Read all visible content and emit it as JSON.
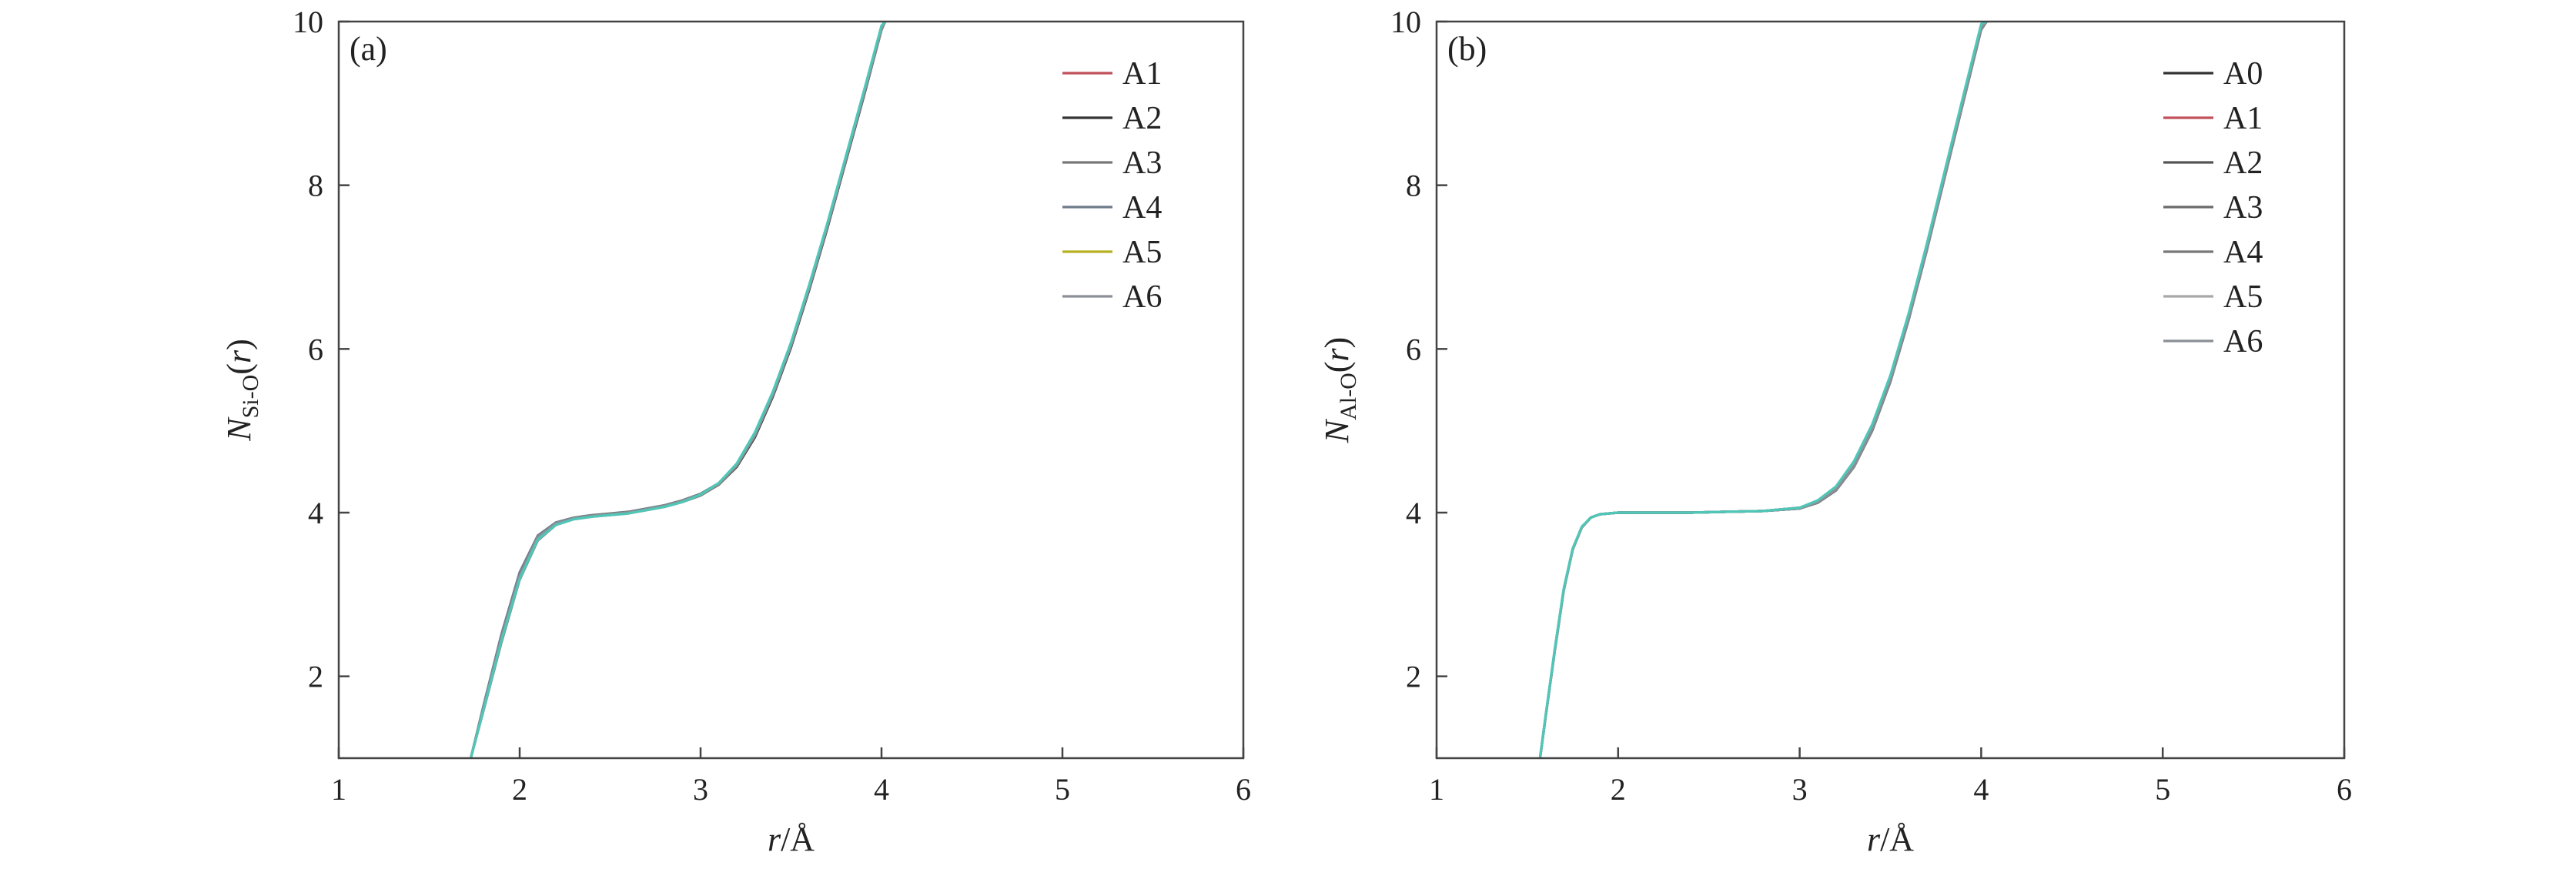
{
  "chart_data": [
    {
      "type": "line",
      "panel_label": "(a)",
      "xlabel": "r/Å",
      "ylabel": "N_Si-O(r)",
      "ylabel_parts": {
        "main": "N",
        "sub": "Si-O",
        "suffix": "(r)"
      },
      "xlabel_parts": {
        "italic": "r",
        "rest": "/Å"
      },
      "xlim": [
        1,
        6
      ],
      "ylim": [
        1,
        10
      ],
      "xticks": [
        "1",
        "2",
        "3",
        "4",
        "5",
        "6"
      ],
      "yticks": [
        "2",
        "4",
        "6",
        "8",
        "10"
      ],
      "grid": false,
      "legend_position": "top-right",
      "x": [
        1.73,
        1.8,
        1.9,
        2.0,
        2.1,
        2.2,
        2.3,
        2.4,
        2.5,
        2.6,
        2.7,
        2.8,
        2.9,
        3.0,
        3.1,
        3.2,
        3.3,
        3.4,
        3.5,
        3.6,
        3.7,
        3.8,
        3.9,
        4.0,
        4.02
      ],
      "series": [
        {
          "name": "A1",
          "color": "#c0505a",
          "values": [
            1.0,
            1.6,
            2.45,
            3.2,
            3.68,
            3.86,
            3.93,
            3.96,
            3.98,
            4.0,
            4.04,
            4.08,
            4.14,
            4.22,
            4.35,
            4.58,
            4.95,
            5.45,
            6.05,
            6.75,
            7.5,
            8.3,
            9.1,
            9.92,
            10.0
          ]
        },
        {
          "name": "A2",
          "color": "#333333",
          "values": [
            1.0,
            1.62,
            2.5,
            3.25,
            3.7,
            3.87,
            3.93,
            3.96,
            3.98,
            4.0,
            4.04,
            4.08,
            4.14,
            4.22,
            4.34,
            4.56,
            4.92,
            5.42,
            6.02,
            6.72,
            7.47,
            8.27,
            9.07,
            9.9,
            10.0
          ]
        },
        {
          "name": "A3",
          "color": "#777777",
          "values": [
            1.0,
            1.58,
            2.42,
            3.18,
            3.66,
            3.85,
            3.92,
            3.95,
            3.97,
            3.99,
            4.03,
            4.07,
            4.13,
            4.21,
            4.34,
            4.57,
            4.94,
            5.44,
            6.04,
            6.74,
            7.49,
            8.29,
            9.09,
            9.91,
            10.0
          ]
        },
        {
          "name": "A4",
          "color": "#6e7b8a",
          "values": [
            1.0,
            1.64,
            2.52,
            3.27,
            3.72,
            3.88,
            3.94,
            3.97,
            3.99,
            4.01,
            4.05,
            4.09,
            4.15,
            4.23,
            4.36,
            4.59,
            4.96,
            5.46,
            6.06,
            6.76,
            7.51,
            8.31,
            9.11,
            9.93,
            10.0
          ]
        },
        {
          "name": "A5",
          "color": "#b8b020",
          "values": [
            1.0,
            1.6,
            2.46,
            3.21,
            3.69,
            3.86,
            3.93,
            3.96,
            3.98,
            4.0,
            4.04,
            4.08,
            4.14,
            4.22,
            4.35,
            4.58,
            4.95,
            5.45,
            6.05,
            6.75,
            7.5,
            8.3,
            9.1,
            9.92,
            10.0
          ]
        },
        {
          "name": "A6",
          "color": "#8a8f96",
          "values": [
            1.0,
            1.61,
            2.48,
            3.23,
            3.7,
            3.87,
            3.93,
            3.96,
            3.98,
            4.0,
            4.04,
            4.08,
            4.14,
            4.22,
            4.35,
            4.58,
            4.94,
            5.44,
            6.04,
            6.74,
            7.49,
            8.29,
            9.09,
            9.91,
            10.0
          ]
        },
        {
          "name": "",
          "color": "#4fc7b8",
          "values": [
            1.0,
            1.59,
            2.44,
            3.19,
            3.67,
            3.85,
            3.92,
            3.95,
            3.97,
            3.99,
            4.03,
            4.07,
            4.13,
            4.22,
            4.36,
            4.6,
            4.98,
            5.48,
            6.08,
            6.78,
            7.53,
            8.33,
            9.13,
            9.95,
            10.0
          ]
        }
      ]
    },
    {
      "type": "line",
      "panel_label": "(b)",
      "xlabel": "r/Å",
      "ylabel": "N_Al-O(r)",
      "ylabel_parts": {
        "main": "N",
        "sub": "Al-O",
        "suffix": "(r)"
      },
      "xlabel_parts": {
        "italic": "r",
        "rest": "/Å"
      },
      "xlim": [
        1,
        6
      ],
      "ylim": [
        1,
        10
      ],
      "xticks": [
        "1",
        "2",
        "3",
        "4",
        "5",
        "6"
      ],
      "yticks": [
        "2",
        "4",
        "6",
        "8",
        "10"
      ],
      "grid": false,
      "legend_position": "top-right",
      "x": [
        1.57,
        1.6,
        1.65,
        1.7,
        1.75,
        1.8,
        1.85,
        1.9,
        2.0,
        2.2,
        2.4,
        2.6,
        2.8,
        3.0,
        3.1,
        3.2,
        3.3,
        3.4,
        3.5,
        3.6,
        3.7,
        3.8,
        3.9,
        4.0,
        4.03
      ],
      "series": [
        {
          "name": "A0",
          "color": "#333333",
          "values": [
            1.0,
            1.5,
            2.3,
            3.05,
            3.55,
            3.82,
            3.94,
            3.98,
            4.0,
            4.0,
            4.0,
            4.01,
            4.02,
            4.06,
            4.14,
            4.3,
            4.6,
            5.05,
            5.65,
            6.4,
            7.25,
            8.15,
            9.05,
            9.95,
            10.0
          ]
        },
        {
          "name": "A1",
          "color": "#c0505a",
          "values": [
            1.0,
            1.5,
            2.3,
            3.05,
            3.55,
            3.82,
            3.94,
            3.98,
            4.0,
            4.0,
            4.0,
            4.01,
            4.02,
            4.06,
            4.14,
            4.3,
            4.6,
            5.05,
            5.65,
            6.4,
            7.25,
            8.15,
            9.05,
            9.94,
            10.0
          ]
        },
        {
          "name": "A2",
          "color": "#555555",
          "values": [
            1.0,
            1.5,
            2.31,
            3.06,
            3.56,
            3.82,
            3.94,
            3.98,
            4.0,
            4.0,
            4.0,
            4.01,
            4.02,
            4.05,
            4.13,
            4.28,
            4.57,
            5.02,
            5.62,
            6.37,
            7.22,
            8.12,
            9.02,
            9.92,
            10.0
          ]
        },
        {
          "name": "A3",
          "color": "#6a6a6a",
          "values": [
            1.0,
            1.5,
            2.3,
            3.05,
            3.55,
            3.82,
            3.94,
            3.98,
            4.0,
            4.0,
            4.0,
            4.01,
            4.02,
            4.05,
            4.13,
            4.29,
            4.58,
            5.03,
            5.63,
            6.38,
            7.23,
            8.13,
            9.03,
            9.93,
            10.0
          ]
        },
        {
          "name": "A4",
          "color": "#777777",
          "values": [
            1.0,
            1.5,
            2.3,
            3.05,
            3.55,
            3.82,
            3.94,
            3.98,
            4.0,
            4.0,
            4.0,
            4.01,
            4.02,
            4.05,
            4.12,
            4.27,
            4.56,
            5.0,
            5.6,
            6.35,
            7.2,
            8.1,
            9.0,
            9.9,
            10.0
          ]
        },
        {
          "name": "A5",
          "color": "#a8a8a8",
          "values": [
            1.0,
            1.5,
            2.3,
            3.05,
            3.55,
            3.82,
            3.94,
            3.98,
            4.0,
            4.0,
            4.0,
            4.01,
            4.02,
            4.06,
            4.14,
            4.3,
            4.6,
            5.05,
            5.65,
            6.4,
            7.25,
            8.15,
            9.05,
            9.95,
            10.0
          ]
        },
        {
          "name": "A6",
          "color": "#8a8f96",
          "values": [
            1.0,
            1.5,
            2.3,
            3.05,
            3.55,
            3.82,
            3.94,
            3.98,
            4.0,
            4.0,
            4.0,
            4.01,
            4.02,
            4.05,
            4.13,
            4.28,
            4.57,
            5.02,
            5.62,
            6.37,
            7.22,
            8.12,
            9.02,
            9.92,
            10.0
          ]
        },
        {
          "name": "",
          "color": "#4fc7b8",
          "values": [
            1.0,
            1.51,
            2.32,
            3.07,
            3.56,
            3.83,
            3.94,
            3.98,
            4.0,
            4.0,
            4.0,
            4.01,
            4.02,
            4.06,
            4.15,
            4.32,
            4.63,
            5.08,
            5.68,
            6.43,
            7.28,
            8.18,
            9.08,
            9.97,
            10.0
          ]
        }
      ]
    }
  ]
}
